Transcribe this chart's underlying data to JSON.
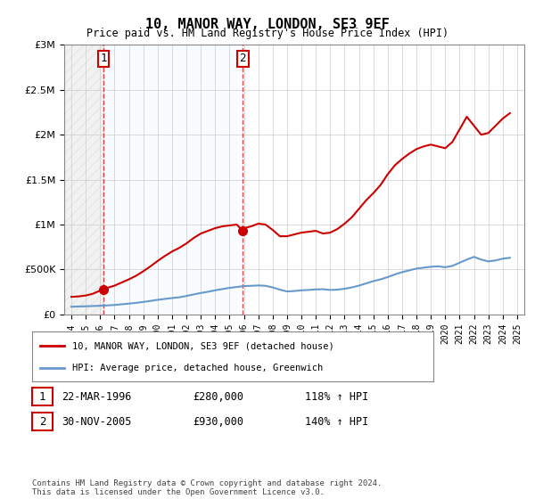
{
  "title": "10, MANOR WAY, LONDON, SE3 9EF",
  "subtitle": "Price paid vs. HM Land Registry's House Price Index (HPI)",
  "legend_line1": "10, MANOR WAY, LONDON, SE3 9EF (detached house)",
  "legend_line2": "HPI: Average price, detached house, Greenwich",
  "footnote": "Contains HM Land Registry data © Crown copyright and database right 2024.\nThis data is licensed under the Open Government Licence v3.0.",
  "table_row1": [
    "1",
    "22-MAR-1996",
    "£280,000",
    "118% ↑ HPI"
  ],
  "table_row2": [
    "2",
    "30-NOV-2005",
    "£930,000",
    "140% ↑ HPI"
  ],
  "sale1_x": 1996.22,
  "sale1_y": 280000,
  "sale2_x": 2005.92,
  "sale2_y": 930000,
  "hpi_color": "#6699cc",
  "house_color": "#cc0000",
  "ylim": [
    0,
    3000000
  ],
  "xlim": [
    1993.5,
    2025.5
  ],
  "yticks": [
    0,
    500000,
    1000000,
    1500000,
    2000000,
    2500000,
    3000000
  ],
  "ytick_labels": [
    "£0",
    "£500K",
    "£1M",
    "£1.5M",
    "£2M",
    "£2.5M",
    "£3M"
  ],
  "xticks": [
    1994,
    1995,
    1996,
    1997,
    1998,
    1999,
    2000,
    2001,
    2002,
    2003,
    2004,
    2005,
    2006,
    2007,
    2008,
    2009,
    2010,
    2011,
    2012,
    2013,
    2014,
    2015,
    2016,
    2017,
    2018,
    2019,
    2020,
    2021,
    2022,
    2023,
    2024,
    2025
  ],
  "hpi_x": [
    1994,
    1994.5,
    1995,
    1995.5,
    1996,
    1996.5,
    1997,
    1997.5,
    1998,
    1998.5,
    1999,
    1999.5,
    2000,
    2000.5,
    2001,
    2001.5,
    2002,
    2002.5,
    2003,
    2003.5,
    2004,
    2004.5,
    2005,
    2005.5,
    2006,
    2006.5,
    2007,
    2007.5,
    2008,
    2008.5,
    2009,
    2009.5,
    2010,
    2010.5,
    2011,
    2011.5,
    2012,
    2012.5,
    2013,
    2013.5,
    2014,
    2014.5,
    2015,
    2015.5,
    2016,
    2016.5,
    2017,
    2017.5,
    2018,
    2018.5,
    2019,
    2019.5,
    2020,
    2020.5,
    2021,
    2021.5,
    2022,
    2022.5,
    2023,
    2023.5,
    2024,
    2024.5
  ],
  "hpi_y": [
    85000,
    88000,
    90000,
    93000,
    96000,
    100000,
    105000,
    112000,
    120000,
    128000,
    138000,
    150000,
    162000,
    172000,
    182000,
    190000,
    205000,
    222000,
    238000,
    252000,
    268000,
    282000,
    295000,
    305000,
    315000,
    318000,
    322000,
    318000,
    300000,
    275000,
    255000,
    260000,
    268000,
    272000,
    278000,
    280000,
    272000,
    275000,
    285000,
    300000,
    320000,
    345000,
    370000,
    390000,
    415000,
    445000,
    470000,
    490000,
    510000,
    520000,
    530000,
    535000,
    525000,
    540000,
    575000,
    610000,
    640000,
    610000,
    590000,
    600000,
    620000,
    630000
  ],
  "house_x": [
    1994,
    1994.5,
    1995,
    1995.5,
    1996.22,
    1996.5,
    1997,
    1997.5,
    1998,
    1998.5,
    1999,
    1999.5,
    2000,
    2000.5,
    2001,
    2001.5,
    2002,
    2002.5,
    2003,
    2003.5,
    2004,
    2004.5,
    2005,
    2005.5,
    2005.92,
    2006,
    2006.5,
    2007,
    2007.5,
    2008,
    2008.5,
    2009,
    2009.5,
    2010,
    2010.5,
    2011,
    2011.5,
    2012,
    2012.5,
    2013,
    2013.5,
    2014,
    2014.5,
    2015,
    2015.5,
    2016,
    2016.5,
    2017,
    2017.5,
    2018,
    2018.5,
    2019,
    2019.5,
    2020,
    2020.5,
    2021,
    2021.5,
    2022,
    2022.5,
    2023,
    2023.5,
    2024,
    2024.5
  ],
  "house_y": [
    195000,
    200000,
    210000,
    230000,
    280000,
    295000,
    320000,
    355000,
    390000,
    430000,
    480000,
    535000,
    595000,
    650000,
    700000,
    740000,
    790000,
    850000,
    900000,
    930000,
    960000,
    980000,
    990000,
    1000000,
    930000,
    960000,
    980000,
    1010000,
    1000000,
    940000,
    870000,
    870000,
    890000,
    910000,
    920000,
    930000,
    900000,
    910000,
    950000,
    1010000,
    1080000,
    1175000,
    1270000,
    1350000,
    1440000,
    1560000,
    1660000,
    1730000,
    1790000,
    1840000,
    1870000,
    1890000,
    1870000,
    1850000,
    1920000,
    2060000,
    2200000,
    2100000,
    2000000,
    2020000,
    2100000,
    2180000,
    2240000
  ]
}
